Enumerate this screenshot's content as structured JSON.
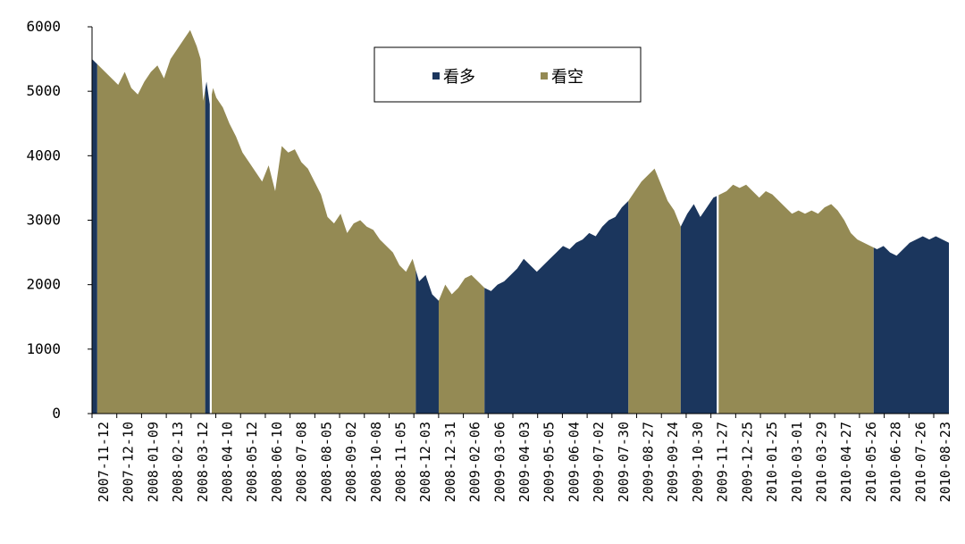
{
  "chart_data": {
    "type": "area",
    "xlabel": "",
    "ylabel": "",
    "ylim": [
      0,
      6000
    ],
    "yticks": [
      0,
      1000,
      2000,
      3000,
      4000,
      5000,
      6000
    ],
    "x_tick_labels": [
      "2007-11-12",
      "2007-12-10",
      "2008-01-09",
      "2008-02-13",
      "2008-03-12",
      "2008-04-10",
      "2008-05-12",
      "2008-06-10",
      "2008-07-08",
      "2008-08-05",
      "2008-09-02",
      "2008-10-08",
      "2008-11-05",
      "2008-12-03",
      "2008-12-31",
      "2009-02-06",
      "2009-03-06",
      "2009-04-03",
      "2009-05-05",
      "2009-06-04",
      "2009-07-02",
      "2009-07-30",
      "2009-08-27",
      "2009-09-24",
      "2009-10-30",
      "2009-11-27",
      "2009-12-25",
      "2010-01-25",
      "2010-03-01",
      "2010-03-29",
      "2010-04-27",
      "2010-05-26",
      "2010-06-28",
      "2010-07-26",
      "2010-08-23"
    ],
    "grid": false,
    "legend_position": "top-center",
    "series": [
      {
        "name": "看多",
        "color": "#1b365d"
      },
      {
        "name": "看空",
        "color": "#948a54"
      }
    ],
    "index_path": [
      [
        0,
        5500
      ],
      [
        1,
        5400
      ],
      [
        3,
        5200
      ],
      [
        4,
        5100
      ],
      [
        5,
        5300
      ],
      [
        6,
        5050
      ],
      [
        7,
        4950
      ],
      [
        8,
        5150
      ],
      [
        9,
        5300
      ],
      [
        10,
        5400
      ],
      [
        11,
        5200
      ],
      [
        12,
        5500
      ],
      [
        13,
        5650
      ],
      [
        14,
        5800
      ],
      [
        15,
        5950
      ],
      [
        16,
        5700
      ],
      [
        16.6,
        5500
      ],
      [
        17,
        4850
      ],
      [
        17.5,
        5150
      ],
      [
        18,
        4800
      ],
      [
        18.5,
        5050
      ],
      [
        19,
        4900
      ],
      [
        20,
        4750
      ],
      [
        21,
        4500
      ],
      [
        22,
        4300
      ],
      [
        23,
        4050
      ],
      [
        24,
        3900
      ],
      [
        25,
        3750
      ],
      [
        26,
        3600
      ],
      [
        27,
        3850
      ],
      [
        28,
        3450
      ],
      [
        29,
        4150
      ],
      [
        30,
        4050
      ],
      [
        31,
        4100
      ],
      [
        32,
        3900
      ],
      [
        33,
        3800
      ],
      [
        34,
        3600
      ],
      [
        35,
        3400
      ],
      [
        36,
        3050
      ],
      [
        37,
        2950
      ],
      [
        38,
        3100
      ],
      [
        39,
        2800
      ],
      [
        40,
        2950
      ],
      [
        41,
        3000
      ],
      [
        42,
        2900
      ],
      [
        43,
        2850
      ],
      [
        44,
        2700
      ],
      [
        45,
        2600
      ],
      [
        46,
        2500
      ],
      [
        47,
        2300
      ],
      [
        48,
        2200
      ],
      [
        49,
        2400
      ],
      [
        50,
        2050
      ],
      [
        51,
        2150
      ],
      [
        52,
        1850
      ],
      [
        53,
        1750
      ],
      [
        54,
        2000
      ],
      [
        55,
        1850
      ],
      [
        56,
        1950
      ],
      [
        57,
        2100
      ],
      [
        58,
        2150
      ],
      [
        59,
        2050
      ],
      [
        60,
        1950
      ],
      [
        61,
        1900
      ],
      [
        62,
        2000
      ],
      [
        63,
        2050
      ],
      [
        64,
        2150
      ],
      [
        65,
        2250
      ],
      [
        66,
        2400
      ],
      [
        67,
        2300
      ],
      [
        68,
        2200
      ],
      [
        69,
        2300
      ],
      [
        70,
        2400
      ],
      [
        71,
        2500
      ],
      [
        72,
        2600
      ],
      [
        73,
        2550
      ],
      [
        74,
        2650
      ],
      [
        75,
        2700
      ],
      [
        76,
        2800
      ],
      [
        77,
        2750
      ],
      [
        78,
        2900
      ],
      [
        79,
        3000
      ],
      [
        80,
        3050
      ],
      [
        81,
        3200
      ],
      [
        82,
        3300
      ],
      [
        83,
        3450
      ],
      [
        84,
        3600
      ],
      [
        85,
        3700
      ],
      [
        86,
        3800
      ],
      [
        87,
        3550
      ],
      [
        88,
        3300
      ],
      [
        89,
        3150
      ],
      [
        90,
        2900
      ],
      [
        91,
        3100
      ],
      [
        92,
        3250
      ],
      [
        93,
        3050
      ],
      [
        94,
        3200
      ],
      [
        95,
        3350
      ],
      [
        96,
        3400
      ],
      [
        97,
        3450
      ],
      [
        98,
        3550
      ],
      [
        99,
        3500
      ],
      [
        100,
        3550
      ],
      [
        101,
        3450
      ],
      [
        102,
        3350
      ],
      [
        103,
        3450
      ],
      [
        104,
        3400
      ],
      [
        105,
        3300
      ],
      [
        106,
        3200
      ],
      [
        107,
        3100
      ],
      [
        108,
        3150
      ],
      [
        109,
        3100
      ],
      [
        110,
        3150
      ],
      [
        111,
        3100
      ],
      [
        112,
        3200
      ],
      [
        113,
        3250
      ],
      [
        114,
        3150
      ],
      [
        115,
        3000
      ],
      [
        116,
        2800
      ],
      [
        117,
        2700
      ],
      [
        118,
        2650
      ],
      [
        119,
        2600
      ],
      [
        120,
        2550
      ],
      [
        121,
        2600
      ],
      [
        122,
        2500
      ],
      [
        123,
        2450
      ],
      [
        124,
        2550
      ],
      [
        125,
        2650
      ],
      [
        126,
        2700
      ],
      [
        127,
        2750
      ],
      [
        128,
        2700
      ],
      [
        129,
        2750
      ],
      [
        130,
        2700
      ],
      [
        131,
        2650
      ]
    ],
    "regimes": [
      {
        "from": 0,
        "to": 0.8,
        "series": "看多"
      },
      {
        "from": 0.8,
        "to": 17.3,
        "series": "看空"
      },
      {
        "from": 17.3,
        "to": 18.0,
        "series": "看多"
      },
      {
        "from": 18.3,
        "to": 49.5,
        "series": "看空"
      },
      {
        "from": 49.5,
        "to": 53.0,
        "series": "看多"
      },
      {
        "from": 53.0,
        "to": 60.0,
        "series": "看空"
      },
      {
        "from": 60.0,
        "to": 82.0,
        "series": "看多"
      },
      {
        "from": 82.0,
        "to": 90.0,
        "series": "看空"
      },
      {
        "from": 90.0,
        "to": 95.5,
        "series": "看多"
      },
      {
        "from": 95.8,
        "to": 119.5,
        "series": "看空"
      },
      {
        "from": 119.5,
        "to": 131.0,
        "series": "看多"
      }
    ],
    "x_domain": [
      0,
      131
    ]
  }
}
